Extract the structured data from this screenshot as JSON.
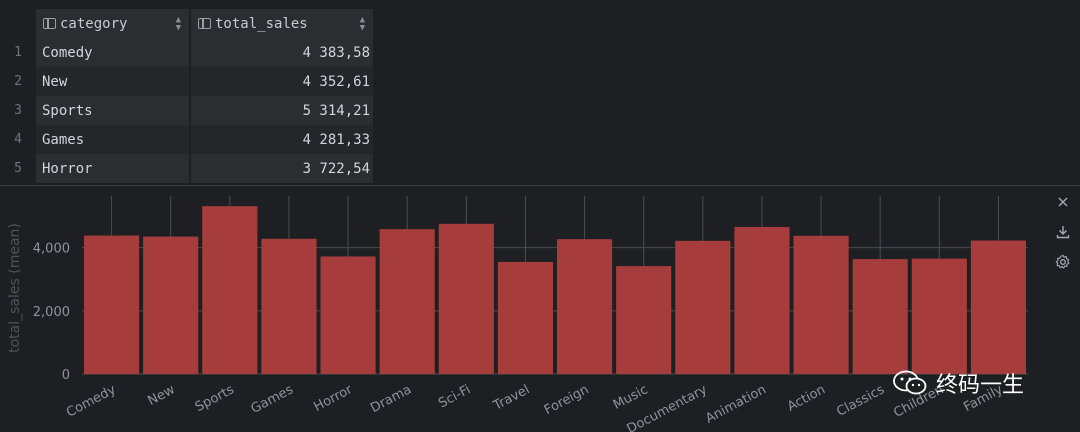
{
  "table": {
    "columns": [
      {
        "label": "category",
        "icon": "column-icon"
      },
      {
        "label": "total_sales",
        "icon": "column-icon"
      }
    ],
    "rows": [
      {
        "num": "1",
        "category": "Comedy",
        "total_sales": "4 383,58"
      },
      {
        "num": "2",
        "category": "New",
        "total_sales": "4 352,61"
      },
      {
        "num": "3",
        "category": "Sports",
        "total_sales": "5 314,21"
      },
      {
        "num": "4",
        "category": "Games",
        "total_sales": "4 281,33"
      },
      {
        "num": "5",
        "category": "Horror",
        "total_sales": "3 722,54"
      }
    ]
  },
  "toolbar": {
    "close_icon": "close-icon",
    "download_icon": "download-icon",
    "settings_icon": "gear-icon"
  },
  "watermark": {
    "text": "终码一生",
    "icon": "wechat-icon"
  },
  "colors": {
    "bar": "#a63c3b",
    "background": "#1e1f22",
    "grid": "#4a4d52",
    "axis_text": "#8f949b"
  },
  "chart_data": {
    "type": "bar",
    "ylabel": "total_sales (mean)",
    "xlabel": "",
    "ylim": [
      0,
      5700
    ],
    "yticks": [
      0,
      2000,
      4000
    ],
    "ytick_labels": [
      "0",
      "2,000",
      "4,000"
    ],
    "categories": [
      "Comedy",
      "New",
      "Sports",
      "Games",
      "Horror",
      "Drama",
      "Sci-Fi",
      "Travel",
      "Foreign",
      "Music",
      "Documentary",
      "Animation",
      "Action",
      "Classics",
      "Children",
      "Family"
    ],
    "values": [
      4383.58,
      4352.61,
      5314.21,
      4281.33,
      3722.54,
      4587,
      4756,
      3549,
      4270,
      3417,
      4217,
      4656,
      4375,
      3639,
      3655,
      4226
    ]
  }
}
